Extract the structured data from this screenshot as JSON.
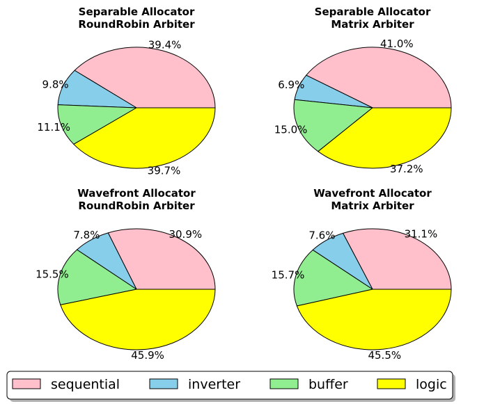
{
  "chart_data": [
    {
      "type": "pie",
      "title": "Separable Allocator\nRoundRobin Arbiter",
      "labels": [
        "sequential",
        "inverter",
        "buffer",
        "logic"
      ],
      "values": [
        39.4,
        9.8,
        11.1,
        39.7
      ],
      "value_labels": [
        "39.4%",
        "9.8%",
        "11.1%",
        "39.7%"
      ]
    },
    {
      "type": "pie",
      "title": "Separable Allocator\nMatrix Arbiter",
      "labels": [
        "sequential",
        "inverter",
        "buffer",
        "logic"
      ],
      "values": [
        41.0,
        6.9,
        15.0,
        37.2
      ],
      "value_labels": [
        "41.0%",
        "6.9%",
        "15.0%",
        "37.2%"
      ]
    },
    {
      "type": "pie",
      "title": "Wavefront Allocator\nRoundRobin Arbiter",
      "labels": [
        "sequential",
        "inverter",
        "buffer",
        "logic"
      ],
      "values": [
        30.9,
        7.8,
        15.5,
        45.9
      ],
      "value_labels": [
        "30.9%",
        "7.8%",
        "15.5%",
        "45.9%"
      ]
    },
    {
      "type": "pie",
      "title": "Wavefront Allocator\nMatrix Arbiter",
      "labels": [
        "sequential",
        "inverter",
        "buffer",
        "logic"
      ],
      "values": [
        31.1,
        7.6,
        15.7,
        45.5
      ],
      "value_labels": [
        "31.1%",
        "7.6%",
        "15.7%",
        "45.5%"
      ]
    }
  ],
  "legend": {
    "placement": "bottom",
    "entries": [
      "sequential",
      "inverter",
      "buffer",
      "logic"
    ]
  },
  "colors": {
    "sequential": "#ffc0cb",
    "inverter": "#87ceeb",
    "buffer": "#90ee90",
    "logic": "#ffff00"
  }
}
